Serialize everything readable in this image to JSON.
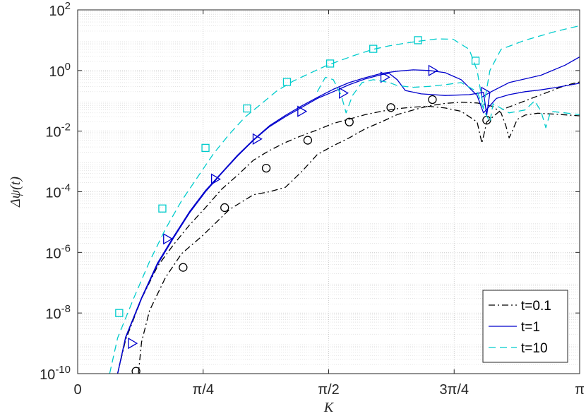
{
  "chart_data": {
    "type": "line",
    "xlabel": "K",
    "ylabel": "Δψ(t)",
    "xlim": [
      0,
      3.14159
    ],
    "ylim": [
      1e-10,
      100
    ],
    "yscale": "log",
    "grid": true,
    "minor_grid": true,
    "legend_position": "bottom-right",
    "x_ticks": [
      {
        "value": 0,
        "label": "0"
      },
      {
        "value": 0.7854,
        "label": "π/4"
      },
      {
        "value": 1.5708,
        "label": "π/2"
      },
      {
        "value": 2.3562,
        "label": "3π/4"
      },
      {
        "value": 3.14159,
        "label": "π"
      }
    ],
    "y_ticks": [
      {
        "value": 1e-10,
        "base": "10",
        "exp": "-10"
      },
      {
        "value": 1e-08,
        "base": "10",
        "exp": "-8"
      },
      {
        "value": 1e-06,
        "base": "10",
        "exp": "-6"
      },
      {
        "value": 0.0001,
        "base": "10",
        "exp": "-4"
      },
      {
        "value": 0.01,
        "base": "10",
        "exp": "-2"
      },
      {
        "value": 1,
        "base": "10",
        "exp": "0"
      },
      {
        "value": 100,
        "base": "10",
        "exp": "2"
      }
    ],
    "series": [
      {
        "name": "t=0.1",
        "color": "#000000",
        "style": "dashdot",
        "width": 1.3,
        "curves": [
          [
            [
              0.38,
              1e-10
            ],
            [
              0.4,
              1.1e-09
            ],
            [
              0.45,
              1.2e-08
            ],
            [
              0.55,
              1.5e-07
            ],
            [
              0.65,
              9e-07
            ],
            [
              0.78,
              3.5e-06
            ],
            [
              0.95,
              2.6e-05
            ],
            [
              1.1,
              8e-05
            ],
            [
              1.2,
              0.0001
            ],
            [
              1.3,
              0.00014
            ],
            [
              1.4,
              0.00045
            ],
            [
              1.5,
              0.0017
            ],
            [
              1.6,
              0.0033
            ],
            [
              1.7,
              0.006
            ],
            [
              1.8,
              0.012
            ],
            [
              1.9,
              0.02
            ],
            [
              2.0,
              0.035
            ],
            [
              2.1,
              0.05
            ],
            [
              2.2,
              0.068
            ],
            [
              2.3,
              0.082
            ],
            [
              2.4,
              0.09
            ],
            [
              2.5,
              0.085
            ],
            [
              2.6,
              0.065
            ],
            [
              2.65,
              0.04
            ],
            [
              2.68,
              0.015
            ],
            [
              2.7,
              0.006
            ],
            [
              2.72,
              0.01
            ],
            [
              2.75,
              0.024
            ],
            [
              2.8,
              0.034
            ],
            [
              2.88,
              0.039
            ],
            [
              3.0,
              0.036
            ],
            [
              3.14159,
              0.032
            ]
          ],
          [
            [
              0.25,
              1e-10
            ],
            [
              0.3,
              1.3e-09
            ],
            [
              0.4,
              3e-08
            ],
            [
              0.5,
              3.5e-07
            ],
            [
              0.6,
              1.8e-06
            ],
            [
              0.7,
              8e-06
            ],
            [
              0.8,
              3e-05
            ],
            [
              0.9,
              0.00012
            ],
            [
              1.0,
              0.00035
            ],
            [
              1.1,
              0.0011
            ],
            [
              1.2,
              0.0023
            ],
            [
              1.3,
              0.0042
            ],
            [
              1.4,
              0.007
            ],
            [
              1.5,
              0.011
            ],
            [
              1.6,
              0.018
            ],
            [
              1.7,
              0.025
            ],
            [
              1.8,
              0.035
            ],
            [
              1.9,
              0.045
            ],
            [
              2.0,
              0.055
            ],
            [
              2.1,
              0.062
            ],
            [
              2.2,
              0.066
            ],
            [
              2.3,
              0.058
            ],
            [
              2.4,
              0.045
            ],
            [
              2.5,
              0.02
            ],
            [
              2.53,
              0.004
            ],
            [
              2.56,
              0.02
            ],
            [
              2.65,
              0.05
            ],
            [
              2.8,
              0.1
            ],
            [
              2.95,
              0.2
            ],
            [
              3.05,
              0.32
            ],
            [
              3.14159,
              0.42
            ]
          ]
        ],
        "markers": "circle",
        "marker_points": [
          [
            0.365,
            1.2e-10
          ],
          [
            0.66,
            3.2e-07
          ],
          [
            0.92,
            3e-05
          ],
          [
            1.18,
            0.0006
          ],
          [
            1.44,
            0.005
          ],
          [
            1.7,
            0.02
          ],
          [
            1.96,
            0.06
          ],
          [
            2.22,
            0.11
          ],
          [
            2.56,
            0.023
          ]
        ]
      },
      {
        "name": "t=1",
        "color": "#0000cc",
        "style": "solid",
        "width": 1.3,
        "curves": [
          [
            [
              0.25,
              1e-10
            ],
            [
              0.3,
              1.5e-09
            ],
            [
              0.4,
              3e-08
            ],
            [
              0.5,
              4e-07
            ],
            [
              0.6,
              3e-06
            ],
            [
              0.7,
              2e-05
            ],
            [
              0.8,
              0.0001
            ],
            [
              0.9,
              0.0004
            ],
            [
              1.0,
              0.0015
            ],
            [
              1.1,
              0.005
            ],
            [
              1.2,
              0.014
            ],
            [
              1.3,
              0.03
            ],
            [
              1.4,
              0.06
            ],
            [
              1.5,
              0.12
            ],
            [
              1.6,
              0.2
            ],
            [
              1.7,
              0.34
            ],
            [
              1.8,
              0.53
            ],
            [
              1.9,
              0.73
            ],
            [
              1.95,
              0.8
            ],
            [
              2.0,
              0.5
            ],
            [
              2.05,
              0.22
            ],
            [
              2.15,
              0.17
            ],
            [
              2.3,
              0.15
            ],
            [
              2.45,
              0.16
            ],
            [
              2.54,
              0.19
            ],
            [
              2.56,
              0.034
            ],
            [
              2.58,
              0.19
            ],
            [
              2.7,
              0.4
            ],
            [
              2.9,
              0.7
            ],
            [
              3.05,
              1.5
            ],
            [
              3.14159,
              2.8
            ]
          ],
          [
            [
              0.25,
              1e-10
            ],
            [
              0.3,
              1.6e-09
            ],
            [
              0.4,
              3.2e-08
            ],
            [
              0.5,
              4.5e-07
            ],
            [
              0.6,
              3.3e-06
            ],
            [
              0.7,
              2.2e-05
            ],
            [
              0.8,
              0.00011
            ],
            [
              0.9,
              0.00042
            ],
            [
              1.0,
              0.0016
            ],
            [
              1.1,
              0.0052
            ],
            [
              1.2,
              0.015
            ],
            [
              1.3,
              0.033
            ],
            [
              1.4,
              0.067
            ],
            [
              1.5,
              0.13
            ],
            [
              1.6,
              0.24
            ],
            [
              1.7,
              0.4
            ],
            [
              1.8,
              0.58
            ],
            [
              1.9,
              0.8
            ],
            [
              2.0,
              0.95
            ],
            [
              2.1,
              1.05
            ],
            [
              2.2,
              1.0
            ],
            [
              2.3,
              0.85
            ],
            [
              2.4,
              0.5
            ],
            [
              2.5,
              0.15
            ],
            [
              2.54,
              0.04
            ],
            [
              2.57,
              0.06
            ],
            [
              2.62,
              0.12
            ],
            [
              2.7,
              0.16
            ],
            [
              2.8,
              0.2
            ],
            [
              2.9,
              0.23
            ],
            [
              3.0,
              0.28
            ],
            [
              3.14159,
              0.38
            ]
          ]
        ],
        "markers": "triangle-right",
        "marker_points": [
          [
            0.34,
            1e-09
          ],
          [
            0.56,
            2.8e-06
          ],
          [
            0.86,
            0.00026
          ],
          [
            1.12,
            0.0055
          ],
          [
            1.4,
            0.045
          ],
          [
            1.66,
            0.18
          ],
          [
            1.92,
            0.6
          ],
          [
            2.22,
            1.0
          ],
          [
            2.55,
            0.19
          ]
        ]
      },
      {
        "name": "t=10",
        "color": "#00cccc",
        "style": "dashed",
        "width": 1.3,
        "curves": [
          [
            [
              0.2,
              1e-10
            ],
            [
              0.25,
              1.5e-09
            ],
            [
              0.35,
              3e-08
            ],
            [
              0.45,
              5e-07
            ],
            [
              0.55,
              6e-06
            ],
            [
              0.65,
              5e-05
            ],
            [
              0.75,
              0.0003
            ],
            [
              0.85,
              0.0018
            ],
            [
              0.95,
              0.008
            ],
            [
              1.05,
              0.03
            ],
            [
              1.15,
              0.08
            ],
            [
              1.25,
              0.22
            ],
            [
              1.35,
              0.45
            ],
            [
              1.45,
              0.8
            ],
            [
              1.55,
              1.4
            ],
            [
              1.65,
              2.2
            ],
            [
              1.75,
              3.4
            ],
            [
              1.85,
              5
            ],
            [
              1.95,
              6.5
            ],
            [
              2.05,
              8
            ],
            [
              2.15,
              9.5
            ],
            [
              2.25,
              11.0
            ],
            [
              2.35,
              10.8
            ],
            [
              2.45,
              5
            ],
            [
              2.5,
              1
            ],
            [
              2.54,
              0.06
            ],
            [
              2.58,
              1
            ],
            [
              2.65,
              5
            ],
            [
              2.8,
              10.0
            ],
            [
              3.0,
              20.0
            ],
            [
              3.14159,
              30.0
            ]
          ],
          [
            [
              1.5,
              0.2
            ],
            [
              1.55,
              0.6
            ],
            [
              1.6,
              0.5
            ],
            [
              1.65,
              0.15
            ],
            [
              1.68,
              0.04
            ],
            [
              1.72,
              0.15
            ],
            [
              1.78,
              0.4
            ],
            [
              1.85,
              0.5
            ],
            [
              1.95,
              0.4
            ],
            [
              2.0,
              0.32
            ],
            [
              2.1,
              0.28
            ],
            [
              2.2,
              0.3
            ],
            [
              2.3,
              0.34
            ],
            [
              2.4,
              0.4
            ],
            [
              2.5,
              0.2
            ],
            [
              2.55,
              0.04
            ],
            [
              2.58,
              0.02
            ],
            [
              2.6,
              0.08
            ],
            [
              2.7,
              0.04
            ],
            [
              2.8,
              0.05
            ],
            [
              2.86,
              0.1
            ],
            [
              2.9,
              0.045
            ],
            [
              2.93,
              0.013
            ],
            [
              2.96,
              0.045
            ],
            [
              3.05,
              0.04
            ],
            [
              3.14159,
              0.035
            ]
          ]
        ],
        "markers": "square",
        "marker_points": [
          [
            0.26,
            1e-08
          ],
          [
            0.53,
            2.8e-05
          ],
          [
            0.8,
            0.0028
          ],
          [
            1.06,
            0.056
          ],
          [
            1.31,
            0.42
          ],
          [
            1.58,
            1.7
          ],
          [
            1.85,
            5.2
          ],
          [
            2.13,
            10.0
          ],
          [
            2.49,
            2.1
          ]
        ]
      }
    ]
  }
}
